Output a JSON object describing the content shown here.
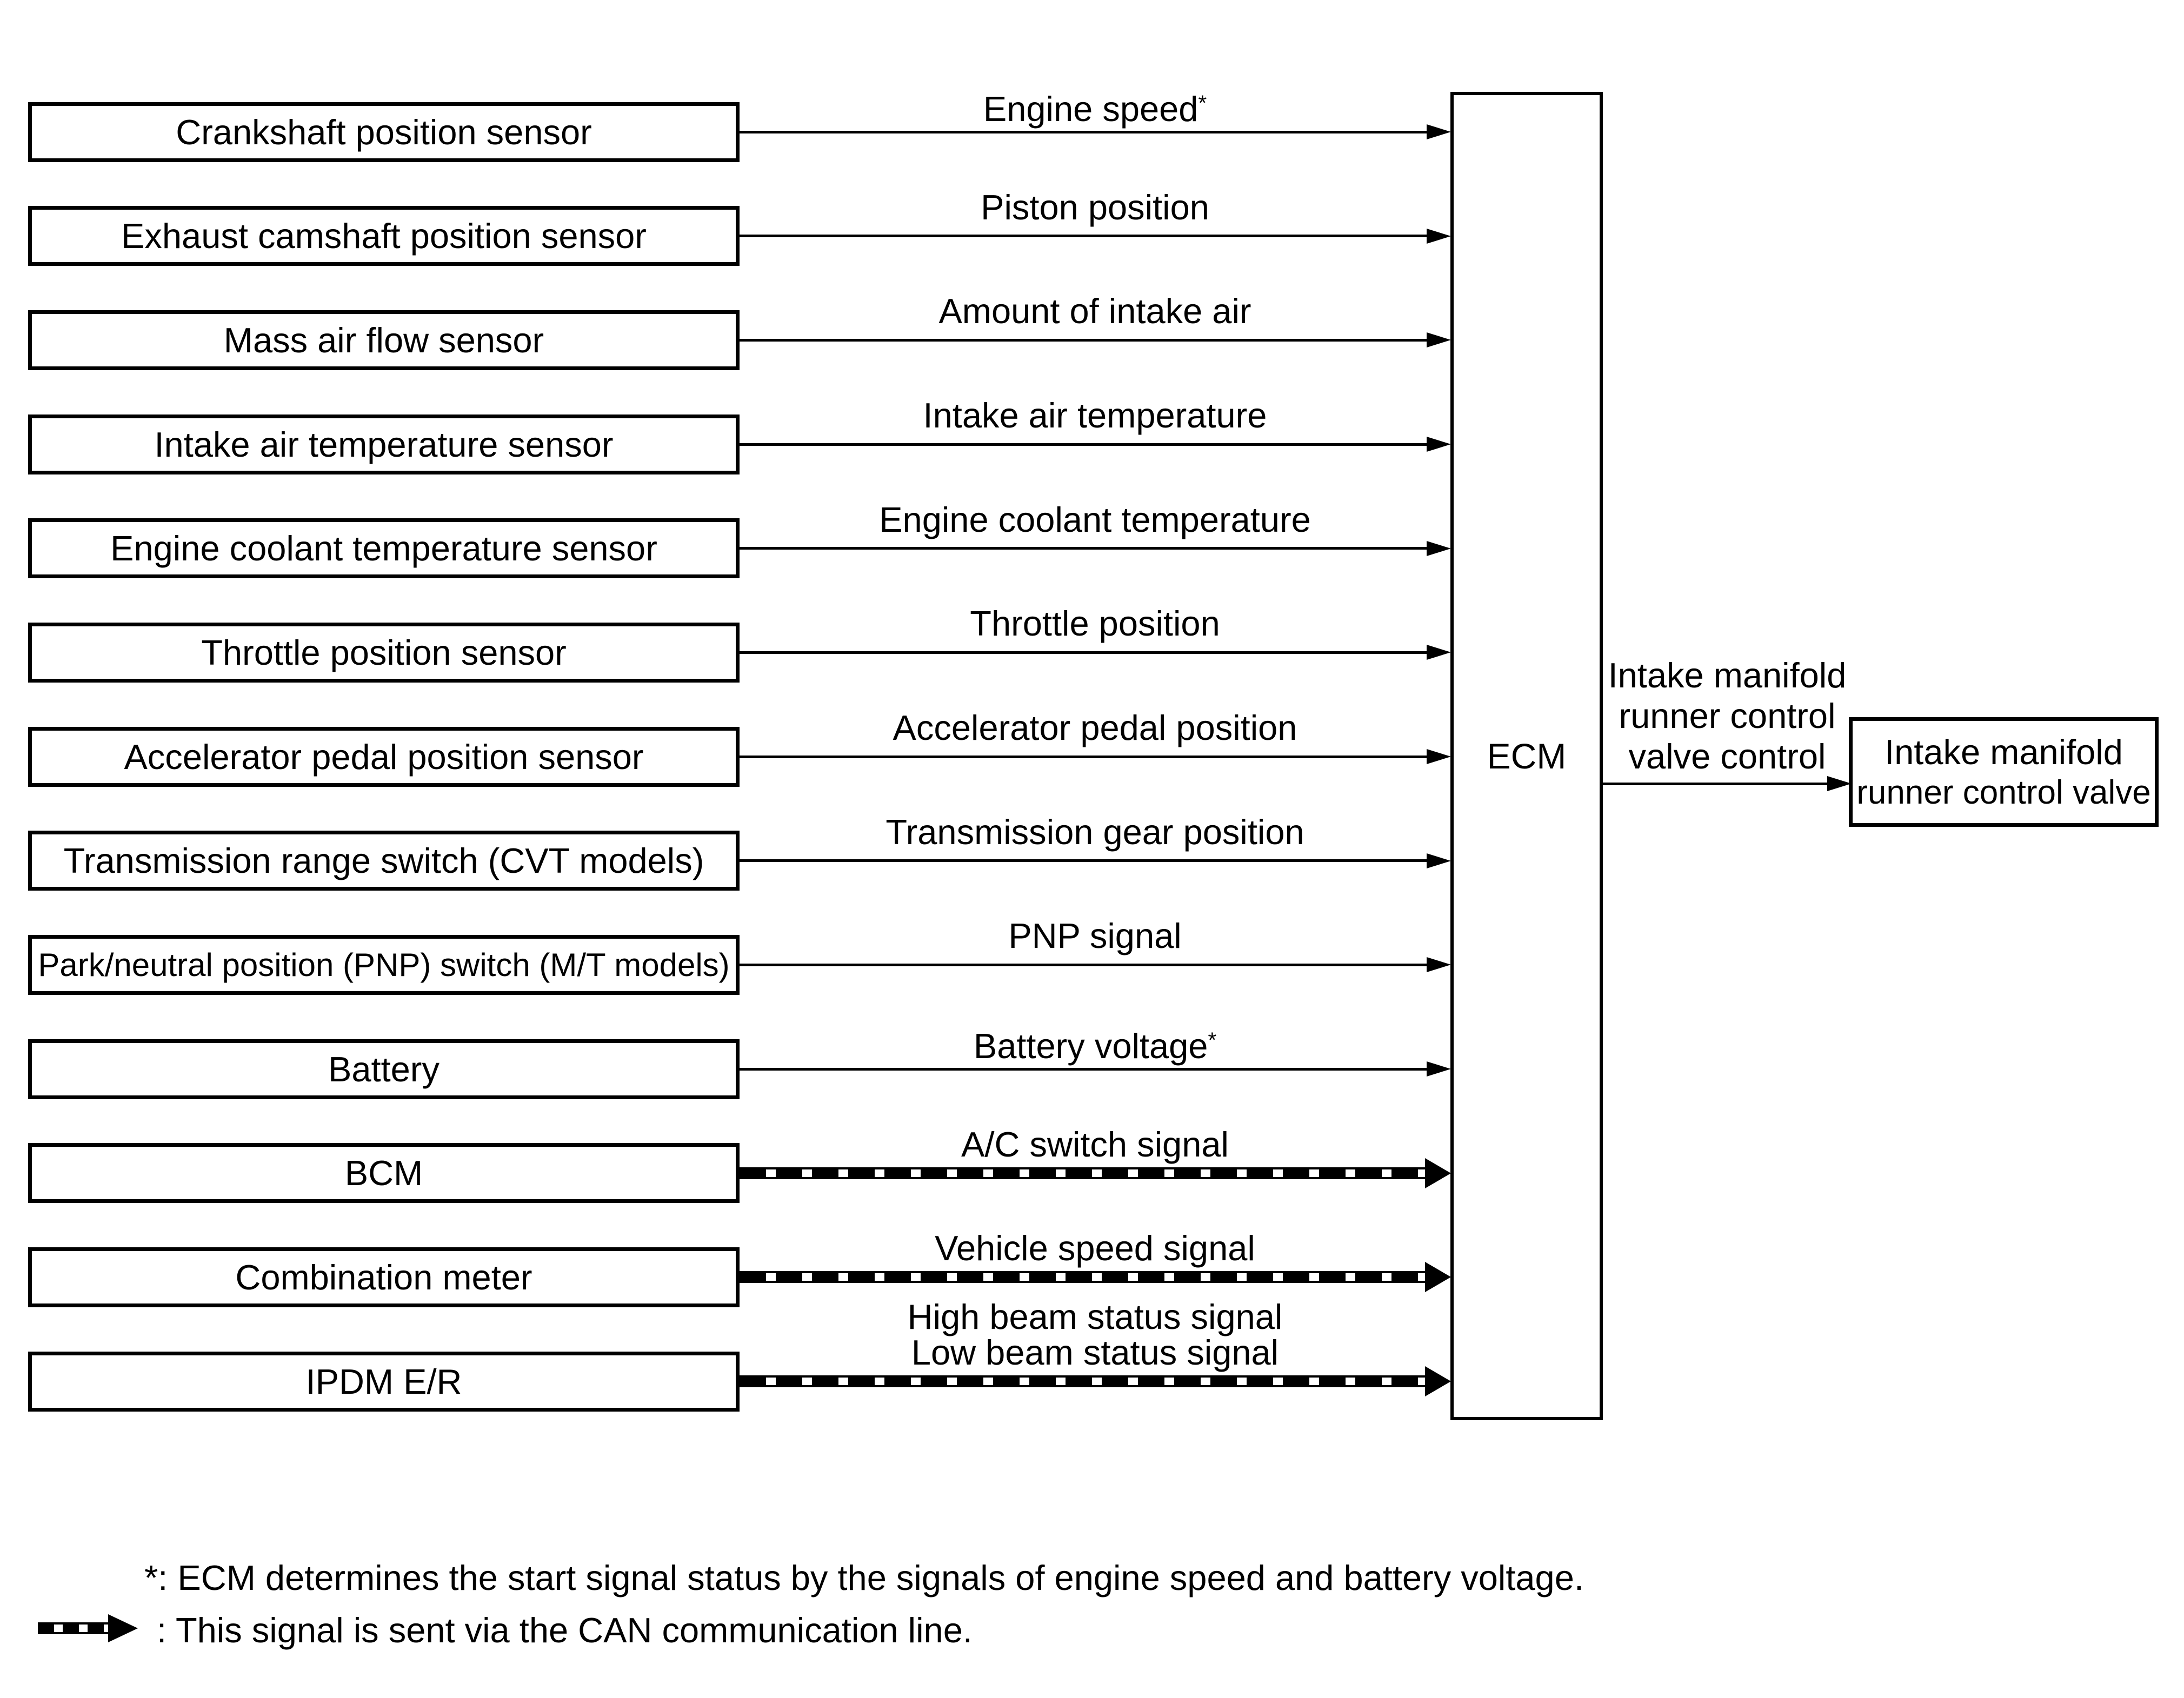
{
  "diagram": {
    "rows": [
      {
        "source": "Crankshaft position sensor",
        "signals": [
          "Engine speed*"
        ],
        "can": false
      },
      {
        "source": "Exhaust camshaft position sensor",
        "signals": [
          "Piston position"
        ],
        "can": false
      },
      {
        "source": "Mass air flow sensor",
        "signals": [
          "Amount of intake air"
        ],
        "can": false
      },
      {
        "source": "Intake air temperature sensor",
        "signals": [
          "Intake air temperature"
        ],
        "can": false
      },
      {
        "source": "Engine coolant temperature sensor",
        "signals": [
          "Engine coolant temperature"
        ],
        "can": false
      },
      {
        "source": "Throttle position sensor",
        "signals": [
          "Throttle position"
        ],
        "can": false
      },
      {
        "source": "Accelerator pedal position sensor",
        "signals": [
          "Accelerator pedal position"
        ],
        "can": false
      },
      {
        "source": "Transmission range switch (CVT models)",
        "signals": [
          "Transmission gear position"
        ],
        "can": false
      },
      {
        "source": "Park/neutral position (PNP) switch (M/T models)",
        "signals": [
          "PNP signal"
        ],
        "can": false
      },
      {
        "source": "Battery",
        "signals": [
          "Battery voltage*"
        ],
        "can": false
      },
      {
        "source": "BCM",
        "signals": [
          "A/C switch signal"
        ],
        "can": true
      },
      {
        "source": "Combination meter",
        "signals": [
          "Vehicle speed signal"
        ],
        "can": true
      },
      {
        "source": "IPDM E/R",
        "signals": [
          "High beam status signal",
          "Low beam status signal"
        ],
        "can": true
      }
    ],
    "ecm_label": "ECM",
    "output": {
      "control_label_lines": [
        "Intake manifold",
        "runner control",
        "valve control"
      ],
      "valve_box_lines": [
        "Intake manifold",
        "runner control valve"
      ]
    },
    "notes": {
      "asterisk": "*: ECM determines the start signal status by the signals of engine speed and battery voltage.",
      "can_legend": ": This signal is sent via the CAN communication line."
    },
    "colors": {
      "ink": "#000000",
      "background": "#ffffff"
    }
  }
}
